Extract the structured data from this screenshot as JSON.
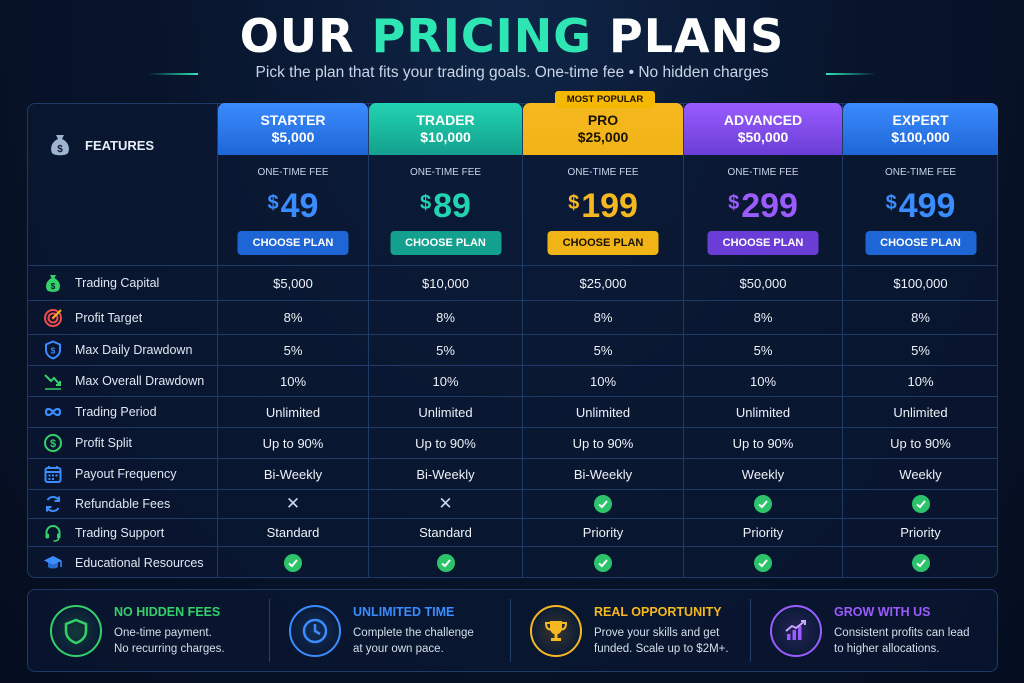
{
  "header": {
    "title_part1": "OUR",
    "title_part2": "PRICING",
    "title_part3": "PLANS",
    "subtitle": "Pick the plan that fits your trading goals. One-time fee • No hidden charges"
  },
  "features_header": "FEATURES",
  "popular_badge": "MOST POPULAR",
  "fee_label": "ONE-TIME FEE",
  "currency_symbol": "$",
  "choose_label": "CHOOSE PLAN",
  "plans": [
    {
      "name": "STARTER",
      "capital": "$5,000",
      "price": "49",
      "color": "#1e66d6",
      "accent": "#3b8cff"
    },
    {
      "name": "TRADER",
      "capital": "$10,000",
      "price": "89",
      "color": "#14a08e",
      "accent": "#22d3b0"
    },
    {
      "name": "PRO",
      "capital": "$25,000",
      "price": "199",
      "color": "#f0b416",
      "accent": "#f6b820"
    },
    {
      "name": "ADVANCED",
      "capital": "$50,000",
      "price": "299",
      "color": "#6a3ed6",
      "accent": "#9a5cff"
    },
    {
      "name": "EXPERT",
      "capital": "$100,000",
      "price": "499",
      "color": "#1e66d6",
      "accent": "#3b8cff"
    }
  ],
  "rows": [
    {
      "label": "Trading Capital",
      "icon": "money-bag-icon",
      "values": [
        "$5,000",
        "$10,000",
        "$25,000",
        "$50,000",
        "$100,000"
      ]
    },
    {
      "label": "Profit Target",
      "icon": "target-icon",
      "values": [
        "8%",
        "8%",
        "8%",
        "8%",
        "8%"
      ]
    },
    {
      "label": "Max Daily Drawdown",
      "icon": "shield-icon",
      "values": [
        "5%",
        "5%",
        "5%",
        "5%",
        "5%"
      ]
    },
    {
      "label": "Max Overall Drawdown",
      "icon": "trend-down-icon",
      "values": [
        "10%",
        "10%",
        "10%",
        "10%",
        "10%"
      ]
    },
    {
      "label": "Trading Period",
      "icon": "infinity-icon",
      "values": [
        "Unlimited",
        "Unlimited",
        "Unlimited",
        "Unlimited",
        "Unlimited"
      ]
    },
    {
      "label": "Profit Split",
      "icon": "dollar-circle-icon",
      "values": [
        "Up to 90%",
        "Up to 90%",
        "Up to 90%",
        "Up to 90%",
        "Up to 90%"
      ]
    },
    {
      "label": "Payout Frequency",
      "icon": "calendar-icon",
      "values": [
        "Bi-Weekly",
        "Bi-Weekly",
        "Bi-Weekly",
        "Weekly",
        "Weekly"
      ]
    },
    {
      "label": "Refundable Fees",
      "icon": "refresh-icon",
      "values": [
        "no",
        "no",
        "yes",
        "yes",
        "yes"
      ]
    },
    {
      "label": "Trading Support",
      "icon": "headset-icon",
      "values": [
        "Standard",
        "Standard",
        "Priority",
        "Priority",
        "Priority"
      ]
    },
    {
      "label": "Educational Resources",
      "icon": "graduation-cap-icon",
      "values": [
        "yes",
        "yes",
        "yes",
        "yes",
        "yes"
      ]
    }
  ],
  "benefits": [
    {
      "title": "NO HIDDEN FEES",
      "line1": "One-time payment.",
      "line2": "No recurring charges.",
      "icon": "shield-icon",
      "color": "#34d06a"
    },
    {
      "title": "UNLIMITED TIME",
      "line1": "Complete the challenge",
      "line2": "at your own pace.",
      "icon": "clock-icon",
      "color": "#3b8cff"
    },
    {
      "title": "REAL OPPORTUNITY",
      "line1": "Prove your skills and get",
      "line2": "funded. Scale up to $2M+.",
      "icon": "trophy-icon",
      "color": "#f6b820"
    },
    {
      "title": "GROW WITH US",
      "line1": "Consistent profits can lead",
      "line2": "to higher allocations.",
      "icon": "growth-chart-icon",
      "color": "#9a5cff"
    }
  ]
}
